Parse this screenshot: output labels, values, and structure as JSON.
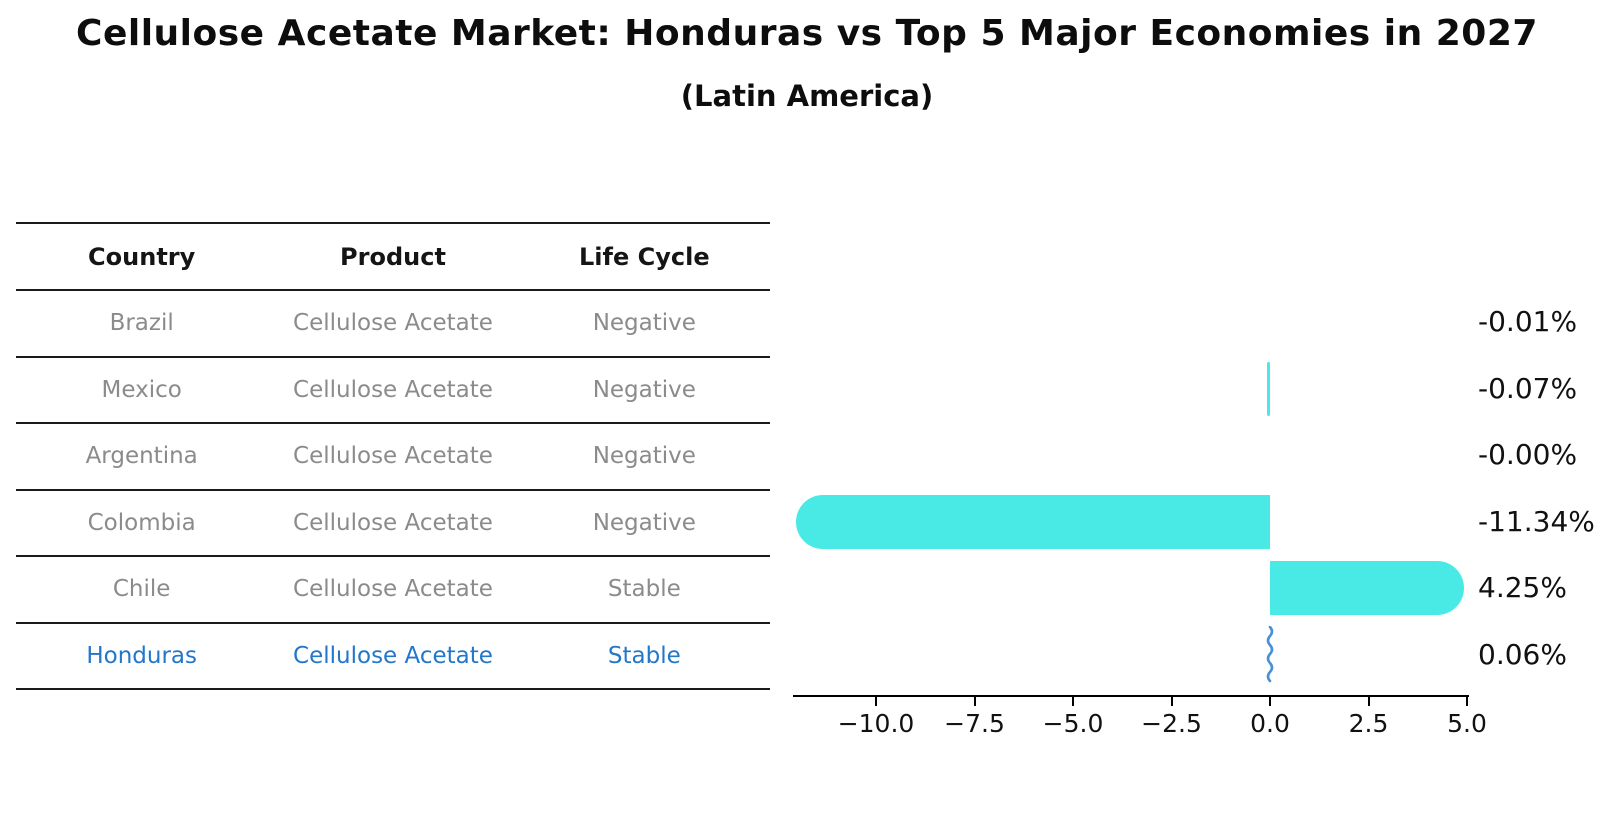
{
  "title": "Cellulose Acetate Market: Honduras vs Top 5 Major Economies in 2027",
  "subtitle": "(Latin America)",
  "table": {
    "headers": [
      "Country",
      "Product",
      "Life Cycle"
    ],
    "rows": [
      {
        "country": "Brazil",
        "product": "Cellulose Acetate",
        "life_cycle": "Negative"
      },
      {
        "country": "Mexico",
        "product": "Cellulose Acetate",
        "life_cycle": "Negative"
      },
      {
        "country": "Argentina",
        "product": "Cellulose Acetate",
        "life_cycle": "Negative"
      },
      {
        "country": "Colombia",
        "product": "Cellulose Acetate",
        "life_cycle": "Negative"
      },
      {
        "country": "Chile",
        "product": "Cellulose Acetate",
        "life_cycle": "Stable"
      },
      {
        "country": "Honduras",
        "product": "Cellulose Acetate",
        "life_cycle": "Stable"
      }
    ]
  },
  "chart_data": {
    "type": "bar",
    "orientation": "horizontal",
    "categories": [
      "Brazil",
      "Mexico",
      "Argentina",
      "Colombia",
      "Chile",
      "Honduras"
    ],
    "values": [
      -0.01,
      -0.07,
      0.0,
      -11.34,
      4.25,
      0.06
    ],
    "value_labels": [
      "-0.01%",
      "-0.07%",
      "-0.00%",
      "-11.34%",
      "4.25%",
      "0.06%"
    ],
    "highlight_category": "Honduras",
    "highlight_marker": "squiggle",
    "xlim": [
      -12.1,
      5.0
    ],
    "xticks": [
      -10.0,
      -7.5,
      -5.0,
      -2.5,
      0.0,
      2.5,
      5.0
    ],
    "xtick_labels": [
      "−10.0",
      "−7.5",
      "−5.0",
      "−2.5",
      "0.0",
      "2.5",
      "5.0"
    ],
    "grid": false,
    "legend": "none",
    "colors": {
      "bar": "#49E9E5",
      "squiggle": "#4A90D8",
      "table_header_text": "#151515",
      "table_row_text": "#8B8B8B",
      "highlight_text": "#2277CB",
      "axis": "#000000",
      "value_label_text": "#111111"
    }
  }
}
